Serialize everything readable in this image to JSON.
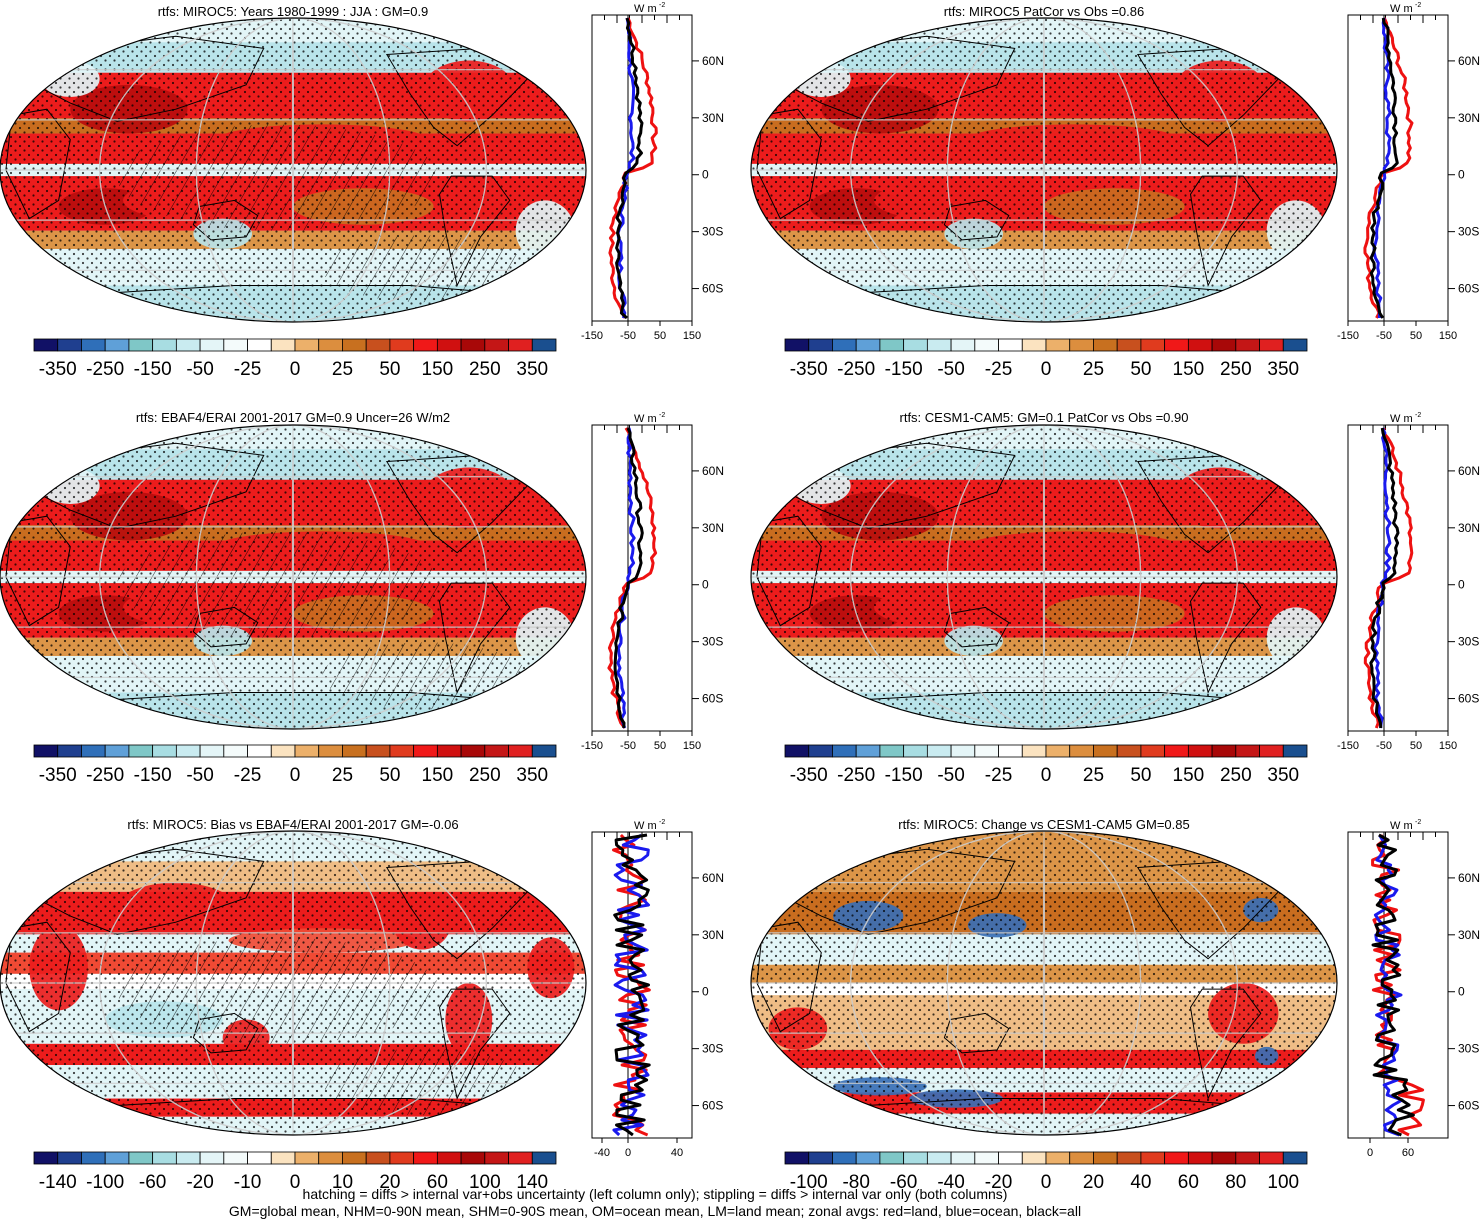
{
  "panels": [
    {
      "title": "rtfs: MIROC5: Years 1980-1999 : JJA : GM=0.9",
      "pattern": "base",
      "hatch": true
    },
    {
      "title": "rtfs: MIROC5 PatCor vs Obs =0.86",
      "pattern": "base",
      "hatch": false
    },
    {
      "title": "rtfs: EBAF4/ERAI 2001-2017 GM=0.9 Uncer=26 W/m2",
      "pattern": "base",
      "hatch": true
    },
    {
      "title": "rtfs: CESM1-CAM5: GM=0.1 PatCor vs Obs =0.90",
      "pattern": "base",
      "hatch": false
    },
    {
      "title": "rtfs: MIROC5: Bias vs EBAF4/ERAI 2001-2017 GM=-0.06",
      "pattern": "bias",
      "hatch": true
    },
    {
      "title": "rtfs: MIROC5: Change vs CESM1-CAM5 GM=0.85",
      "pattern": "change",
      "hatch": false
    }
  ],
  "colorbars": {
    "full": {
      "labels": [
        "-350",
        "-250",
        "-150",
        "-50",
        "-25",
        "0",
        "25",
        "50",
        "150",
        "250",
        "350"
      ]
    },
    "bias": {
      "labels": [
        "-140",
        "-100",
        "-60",
        "-20",
        "-10",
        "0",
        "10",
        "20",
        "60",
        "100",
        "140"
      ]
    },
    "change": {
      "labels": [
        "-100",
        "-80",
        "-60",
        "-40",
        "-20",
        "0",
        "20",
        "40",
        "60",
        "80",
        "100"
      ]
    },
    "colors": [
      "#111166",
      "#1f3f8f",
      "#2f6fb9",
      "#5fa0d8",
      "#7fc7c7",
      "#a8dde2",
      "#c9ebf0",
      "#e4f5f7",
      "#f4fbfb",
      "#ffffff",
      "#fbe3c0",
      "#ecb06a",
      "#dc8e3e",
      "#c8701f",
      "#c8501e",
      "#e03b1e",
      "#f01818",
      "#d01010",
      "#a80808",
      "#c41616",
      "#e02020",
      "#1a4f8f"
    ]
  },
  "zonal_units": "W m",
  "zonal_units_sup": "-2",
  "lat_labels": [
    "60N",
    "30N",
    "0",
    "30S",
    "60S"
  ],
  "zonal_xticks": {
    "full": [
      "-150",
      "-50",
      "50",
      "150"
    ],
    "bias": [
      "-40",
      "0",
      "40"
    ],
    "change": [
      "0",
      "60"
    ]
  },
  "footer": {
    "line1": "hatching = diffs > internal var+obs uncertainty (left column only); stippling = diffs > internal var only (both columns)",
    "line2": "GM=global mean, NHM=0-90N mean, SHM=0-90S mean, OM=ocean mean, LM=land mean; zonal avgs: red=land, blue=ocean, black=all"
  },
  "chart_data": [
    {
      "type": "heatmap",
      "title": "rtfs: MIROC5: Years 1980-1999 : JJA : GM=0.9",
      "colorbar": [
        "-350",
        "-250",
        "-150",
        "-50",
        "-25",
        "0",
        "25",
        "50",
        "150",
        "250",
        "350"
      ],
      "zonal": {
        "type": "line",
        "ylabels": [
          "60N",
          "30N",
          "0",
          "30S",
          "60S"
        ],
        "xticks": [
          "-150",
          "-50",
          "50",
          "150"
        ],
        "series": [
          {
            "name": "land",
            "color": "red"
          },
          {
            "name": "ocean",
            "color": "blue"
          },
          {
            "name": "all",
            "color": "black"
          }
        ]
      }
    },
    {
      "type": "heatmap",
      "title": "rtfs: MIROC5 PatCor vs Obs =0.86",
      "colorbar": [
        "-350",
        "-250",
        "-150",
        "-50",
        "-25",
        "0",
        "25",
        "50",
        "150",
        "250",
        "350"
      ]
    },
    {
      "type": "heatmap",
      "title": "rtfs: EBAF4/ERAI 2001-2017 GM=0.9 Uncer=26 W/m2",
      "colorbar": [
        "-350",
        "-250",
        "-150",
        "-50",
        "-25",
        "0",
        "25",
        "50",
        "150",
        "250",
        "350"
      ]
    },
    {
      "type": "heatmap",
      "title": "rtfs: CESM1-CAM5: GM=0.1 PatCor vs Obs =0.90",
      "colorbar": [
        "-350",
        "-250",
        "-150",
        "-50",
        "-25",
        "0",
        "25",
        "50",
        "150",
        "250",
        "350"
      ]
    },
    {
      "type": "heatmap",
      "title": "rtfs: MIROC5: Bias vs EBAF4/ERAI 2001-2017 GM=-0.06",
      "colorbar": [
        "-140",
        "-100",
        "-60",
        "-20",
        "-10",
        "0",
        "10",
        "20",
        "60",
        "100",
        "140"
      ]
    },
    {
      "type": "heatmap",
      "title": "rtfs: MIROC5: Change vs CESM1-CAM5 GM=0.85",
      "colorbar": [
        "-100",
        "-80",
        "-60",
        "-40",
        "-20",
        "0",
        "20",
        "40",
        "60",
        "80",
        "100"
      ]
    }
  ]
}
